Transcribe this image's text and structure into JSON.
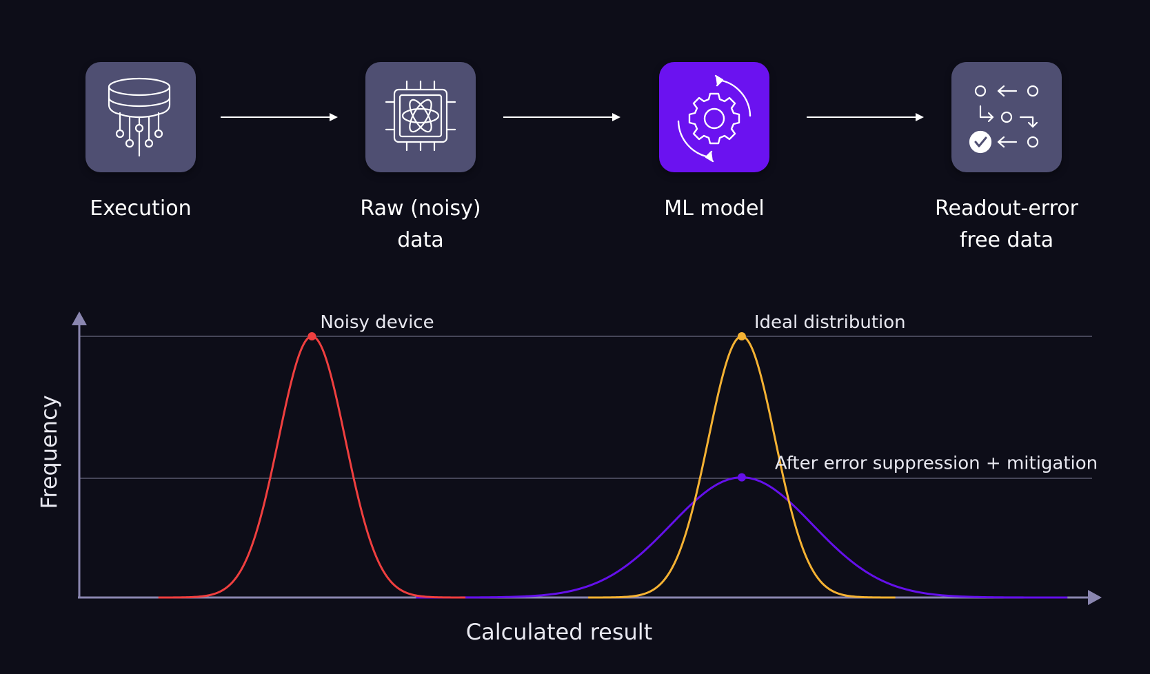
{
  "steps": [
    {
      "label_line1": "Execution",
      "label_line2": "",
      "icon": "database-cpu-icon",
      "accent": "#4f4f72"
    },
    {
      "label_line1": "Raw (noisy)",
      "label_line2": "data",
      "icon": "atom-chip-icon",
      "accent": "#4f4f72"
    },
    {
      "label_line1": "ML model",
      "label_line2": "",
      "icon": "gear-cycle-icon",
      "accent": "#6b12f0"
    },
    {
      "label_line1": "Readout-error",
      "label_line2": "free data",
      "icon": "flow-check-icon",
      "accent": "#4f4f72"
    }
  ],
  "chart_data": {
    "type": "line",
    "xlabel": "Calculated result",
    "ylabel": "Frequency",
    "xlim": [
      0,
      1
    ],
    "ylim": [
      0,
      1
    ],
    "grid": "horizontal reference lines at peak levels",
    "series": [
      {
        "name": "Noisy device",
        "color": "#ef3f3f",
        "mu": 0.23,
        "sigma": 0.033,
        "peak": 1.0
      },
      {
        "name": "Ideal distribution",
        "color": "#f5b233",
        "mu": 0.655,
        "sigma": 0.033,
        "peak": 1.0
      },
      {
        "name": "After error suppression + mitigation",
        "color": "#6410ea",
        "mu": 0.655,
        "sigma": 0.07,
        "peak": 0.46
      }
    ]
  }
}
